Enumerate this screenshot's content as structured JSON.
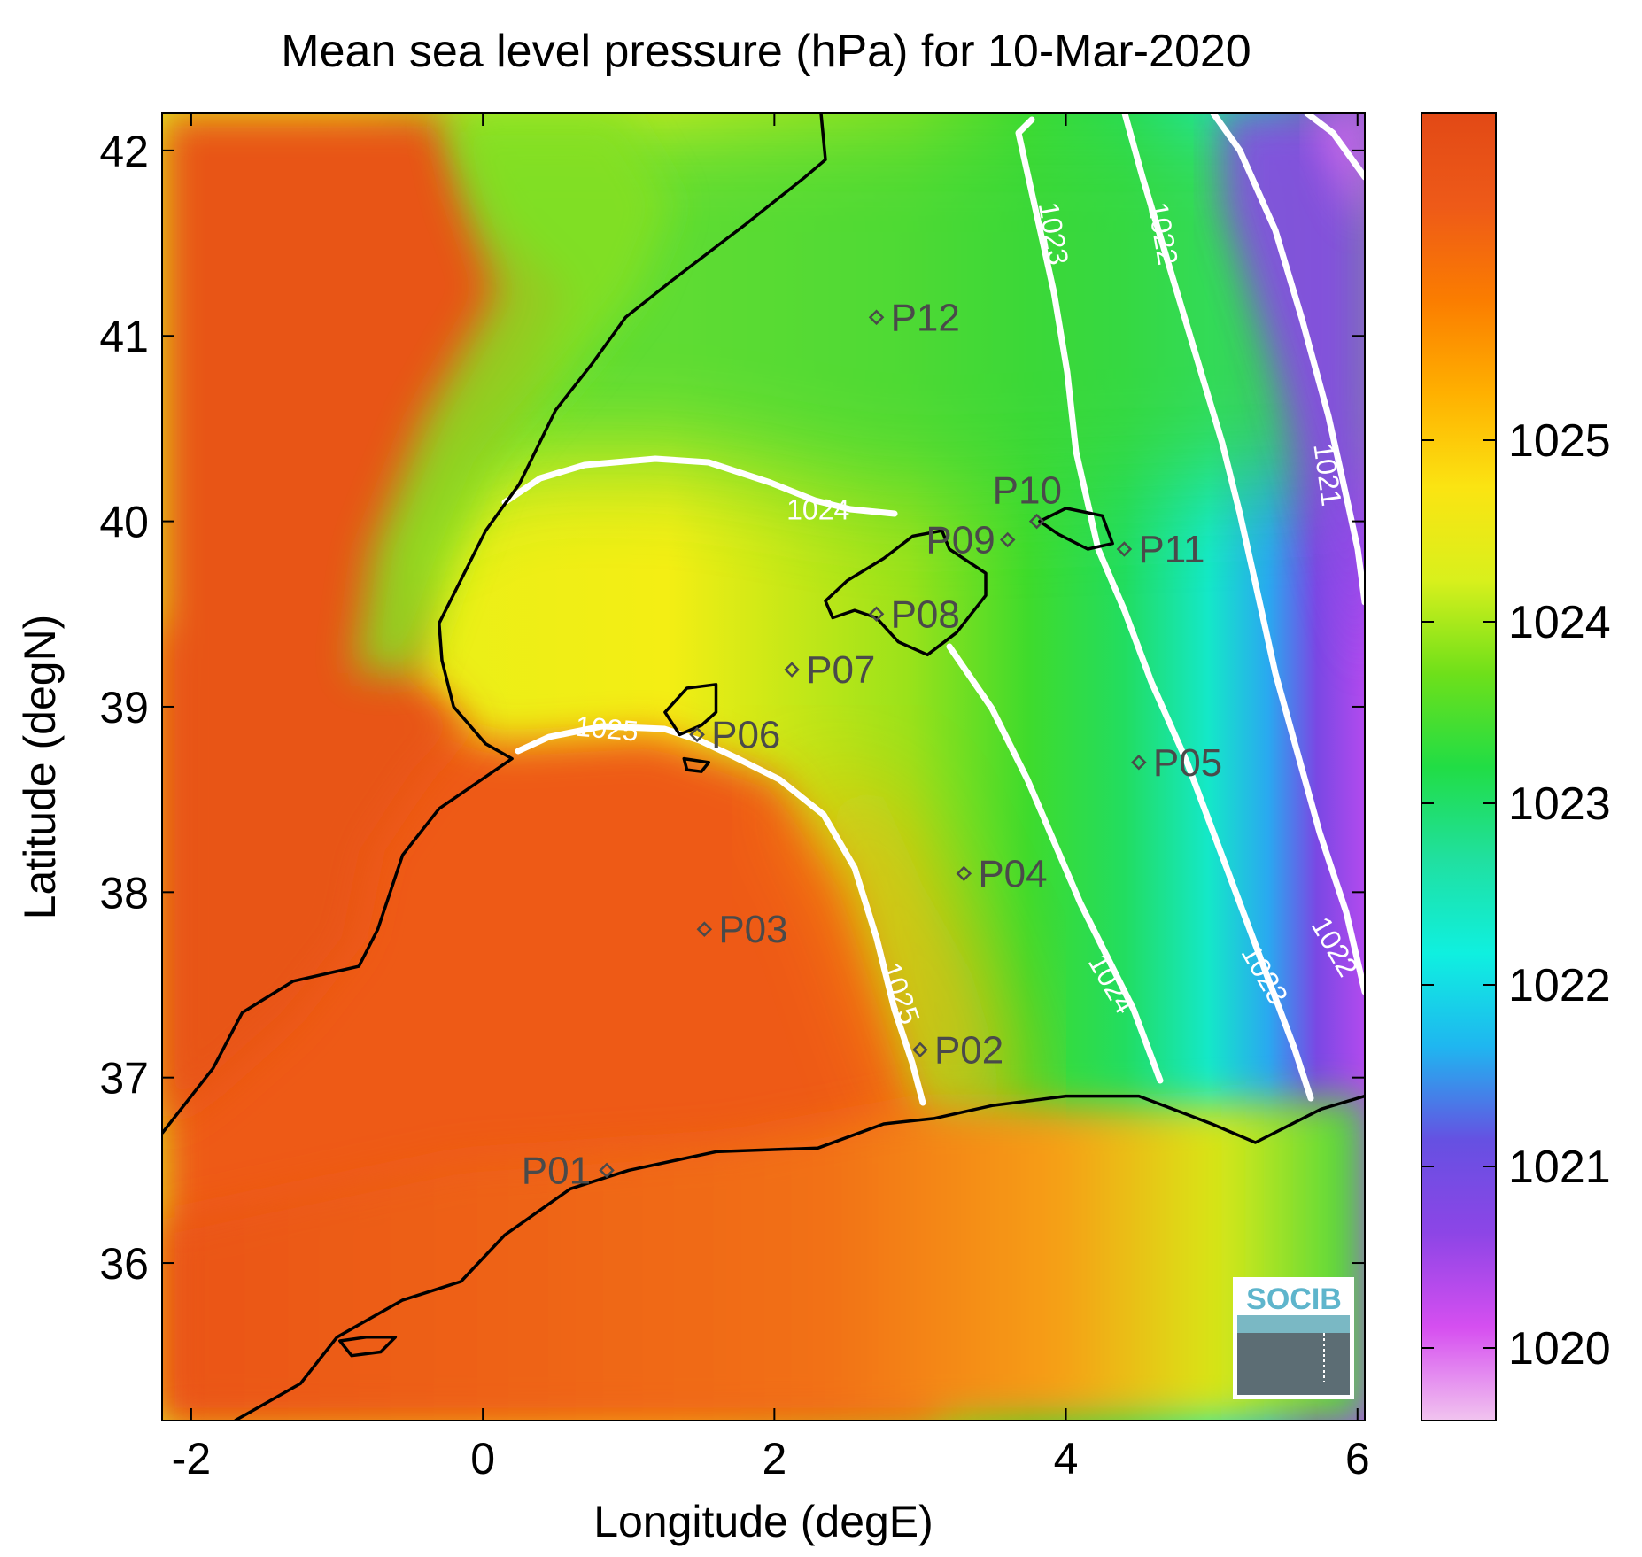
{
  "title": "Mean sea level pressure (hPa) for 10-Mar-2020",
  "x_axis": {
    "label": "Longitude (degE)",
    "range": [
      -2.2,
      6.05
    ],
    "ticks": [
      {
        "value": -2,
        "label": "-2"
      },
      {
        "value": 0,
        "label": "0"
      },
      {
        "value": 2,
        "label": "2"
      },
      {
        "value": 4,
        "label": "4"
      },
      {
        "value": 6,
        "label": "6"
      }
    ]
  },
  "y_axis": {
    "label": "Latitude (degN)",
    "range": [
      35.15,
      42.2
    ],
    "ticks": [
      {
        "value": 36,
        "label": "36"
      },
      {
        "value": 37,
        "label": "37"
      },
      {
        "value": 38,
        "label": "38"
      },
      {
        "value": 39,
        "label": "39"
      },
      {
        "value": 40,
        "label": "40"
      },
      {
        "value": 41,
        "label": "41"
      },
      {
        "value": 42,
        "label": "42"
      }
    ]
  },
  "colorbar": {
    "range": [
      1019.6,
      1026.8
    ],
    "ticks": [
      {
        "value": 1020,
        "label": "1020"
      },
      {
        "value": 1021,
        "label": "1021"
      },
      {
        "value": 1022,
        "label": "1022"
      },
      {
        "value": 1023,
        "label": "1023"
      },
      {
        "value": 1024,
        "label": "1024"
      },
      {
        "value": 1025,
        "label": "1025"
      }
    ],
    "colormap": [
      "#f1c4ef",
      "#d64ff0",
      "#8d45e6",
      "#6650e2",
      "#1fb6f0",
      "#0ff0e0",
      "#20e0a0",
      "#21dd45",
      "#6ee01a",
      "#d9f01c",
      "#fbe412",
      "#ffb000",
      "#fb7d00",
      "#ee5a18",
      "#e24916"
    ]
  },
  "logo": {
    "text": "SOCIB"
  },
  "stations": [
    {
      "id": "P01",
      "label": "P01",
      "lon": 0.85,
      "lat": 36.5
    },
    {
      "id": "P02",
      "label": "P02",
      "lon": 3.0,
      "lat": 37.15
    },
    {
      "id": "P03",
      "label": "P03",
      "lon": 1.52,
      "lat": 37.8
    },
    {
      "id": "P04",
      "label": "P04",
      "lon": 3.3,
      "lat": 38.1
    },
    {
      "id": "P05",
      "label": "P05",
      "lon": 4.5,
      "lat": 38.7
    },
    {
      "id": "P06",
      "label": "P06",
      "lon": 1.47,
      "lat": 38.85
    },
    {
      "id": "P07",
      "label": "P07",
      "lon": 2.12,
      "lat": 39.2
    },
    {
      "id": "P08",
      "label": "P08",
      "lon": 2.7,
      "lat": 39.5
    },
    {
      "id": "P09",
      "label": "P09",
      "lon": 3.6,
      "lat": 39.9
    },
    {
      "id": "P10",
      "label": "P10",
      "lon": 3.8,
      "lat": 40.0
    },
    {
      "id": "P11",
      "label": "P11",
      "lon": 4.4,
      "lat": 39.85
    },
    {
      "id": "P12",
      "label": "P12",
      "lon": 2.7,
      "lat": 41.1
    }
  ],
  "contours": [
    {
      "level": 1025,
      "labels": [
        {
          "text": "1025",
          "lon": 0.85,
          "lat": 38.87,
          "rotate": 5
        },
        {
          "text": "1025",
          "lon": 2.85,
          "lat": 37.45,
          "rotate": 70
        }
      ]
    },
    {
      "level": 1024,
      "labels": [
        {
          "text": "1024",
          "lon": 2.3,
          "lat": 40.05,
          "rotate": 0
        },
        {
          "text": "1024",
          "lon": 4.3,
          "lat": 37.5,
          "rotate": 60
        }
      ]
    },
    {
      "level": 1023,
      "labels": [
        {
          "text": "1023",
          "lon": 3.9,
          "lat": 41.55,
          "rotate": 80
        },
        {
          "text": "1023",
          "lon": 5.35,
          "lat": 37.55,
          "rotate": 60
        }
      ]
    },
    {
      "level": 1022,
      "labels": [
        {
          "text": "1022",
          "lon": 4.65,
          "lat": 41.55,
          "rotate": 80
        },
        {
          "text": "1022",
          "lon": 5.83,
          "lat": 37.7,
          "rotate": 60
        }
      ]
    },
    {
      "level": 1021,
      "labels": [
        {
          "text": "1021",
          "lon": 5.78,
          "lat": 40.25,
          "rotate": 82
        }
      ]
    }
  ],
  "coastlines": [
    {
      "name": "iberian-coast",
      "points": [
        [
          2.32,
          42.2
        ],
        [
          2.35,
          41.95
        ],
        [
          2.2,
          41.85
        ],
        [
          1.8,
          41.6
        ],
        [
          1.3,
          41.3
        ],
        [
          0.98,
          41.1
        ],
        [
          0.75,
          40.85
        ],
        [
          0.5,
          40.6
        ],
        [
          0.25,
          40.2
        ],
        [
          0.02,
          39.95
        ],
        [
          -0.3,
          39.45
        ],
        [
          -0.28,
          39.25
        ],
        [
          -0.2,
          39.0
        ],
        [
          0.02,
          38.8
        ],
        [
          0.2,
          38.72
        ],
        [
          -0.3,
          38.45
        ],
        [
          -0.55,
          38.2
        ],
        [
          -0.72,
          37.8
        ],
        [
          -0.85,
          37.6
        ],
        [
          -1.3,
          37.52
        ],
        [
          -1.65,
          37.35
        ],
        [
          -1.85,
          37.05
        ],
        [
          -2.2,
          36.7
        ]
      ]
    },
    {
      "name": "african-coast",
      "points": [
        [
          -1.7,
          35.15
        ],
        [
          -1.25,
          35.35
        ],
        [
          -1.0,
          35.6
        ],
        [
          -0.55,
          35.8
        ],
        [
          -0.15,
          35.9
        ],
        [
          0.15,
          36.15
        ],
        [
          0.6,
          36.4
        ],
        [
          1.0,
          36.5
        ],
        [
          1.6,
          36.6
        ],
        [
          2.3,
          36.62
        ],
        [
          2.75,
          36.75
        ],
        [
          3.1,
          36.78
        ],
        [
          3.5,
          36.85
        ],
        [
          4.0,
          36.9
        ],
        [
          4.5,
          36.9
        ],
        [
          5.0,
          36.75
        ],
        [
          5.3,
          36.65
        ],
        [
          5.75,
          36.83
        ],
        [
          6.05,
          36.9
        ]
      ]
    },
    {
      "name": "mallorca",
      "closed": true,
      "points": [
        [
          2.35,
          39.57
        ],
        [
          2.5,
          39.68
        ],
        [
          2.75,
          39.8
        ],
        [
          2.95,
          39.92
        ],
        [
          3.15,
          39.95
        ],
        [
          3.2,
          39.85
        ],
        [
          3.45,
          39.72
        ],
        [
          3.45,
          39.6
        ],
        [
          3.25,
          39.4
        ],
        [
          3.05,
          39.28
        ],
        [
          2.85,
          39.35
        ],
        [
          2.7,
          39.48
        ],
        [
          2.55,
          39.52
        ],
        [
          2.4,
          39.48
        ]
      ]
    },
    {
      "name": "menorca",
      "closed": true,
      "points": [
        [
          3.82,
          40.0
        ],
        [
          4.0,
          40.07
        ],
        [
          4.25,
          40.03
        ],
        [
          4.32,
          39.88
        ],
        [
          4.15,
          39.85
        ],
        [
          3.95,
          39.93
        ]
      ]
    },
    {
      "name": "ibiza",
      "closed": true,
      "points": [
        [
          1.25,
          38.97
        ],
        [
          1.4,
          39.1
        ],
        [
          1.6,
          39.12
        ],
        [
          1.6,
          38.97
        ],
        [
          1.5,
          38.9
        ],
        [
          1.35,
          38.85
        ]
      ]
    },
    {
      "name": "formentera",
      "closed": true,
      "points": [
        [
          1.38,
          38.72
        ],
        [
          1.55,
          38.7
        ],
        [
          1.5,
          38.65
        ],
        [
          1.4,
          38.66
        ]
      ]
    },
    {
      "name": "alboran",
      "closed": true,
      "points": [
        [
          -0.98,
          35.58
        ],
        [
          -0.8,
          35.6
        ],
        [
          -0.6,
          35.6
        ],
        [
          -0.7,
          35.52
        ],
        [
          -0.9,
          35.5
        ]
      ]
    }
  ]
}
